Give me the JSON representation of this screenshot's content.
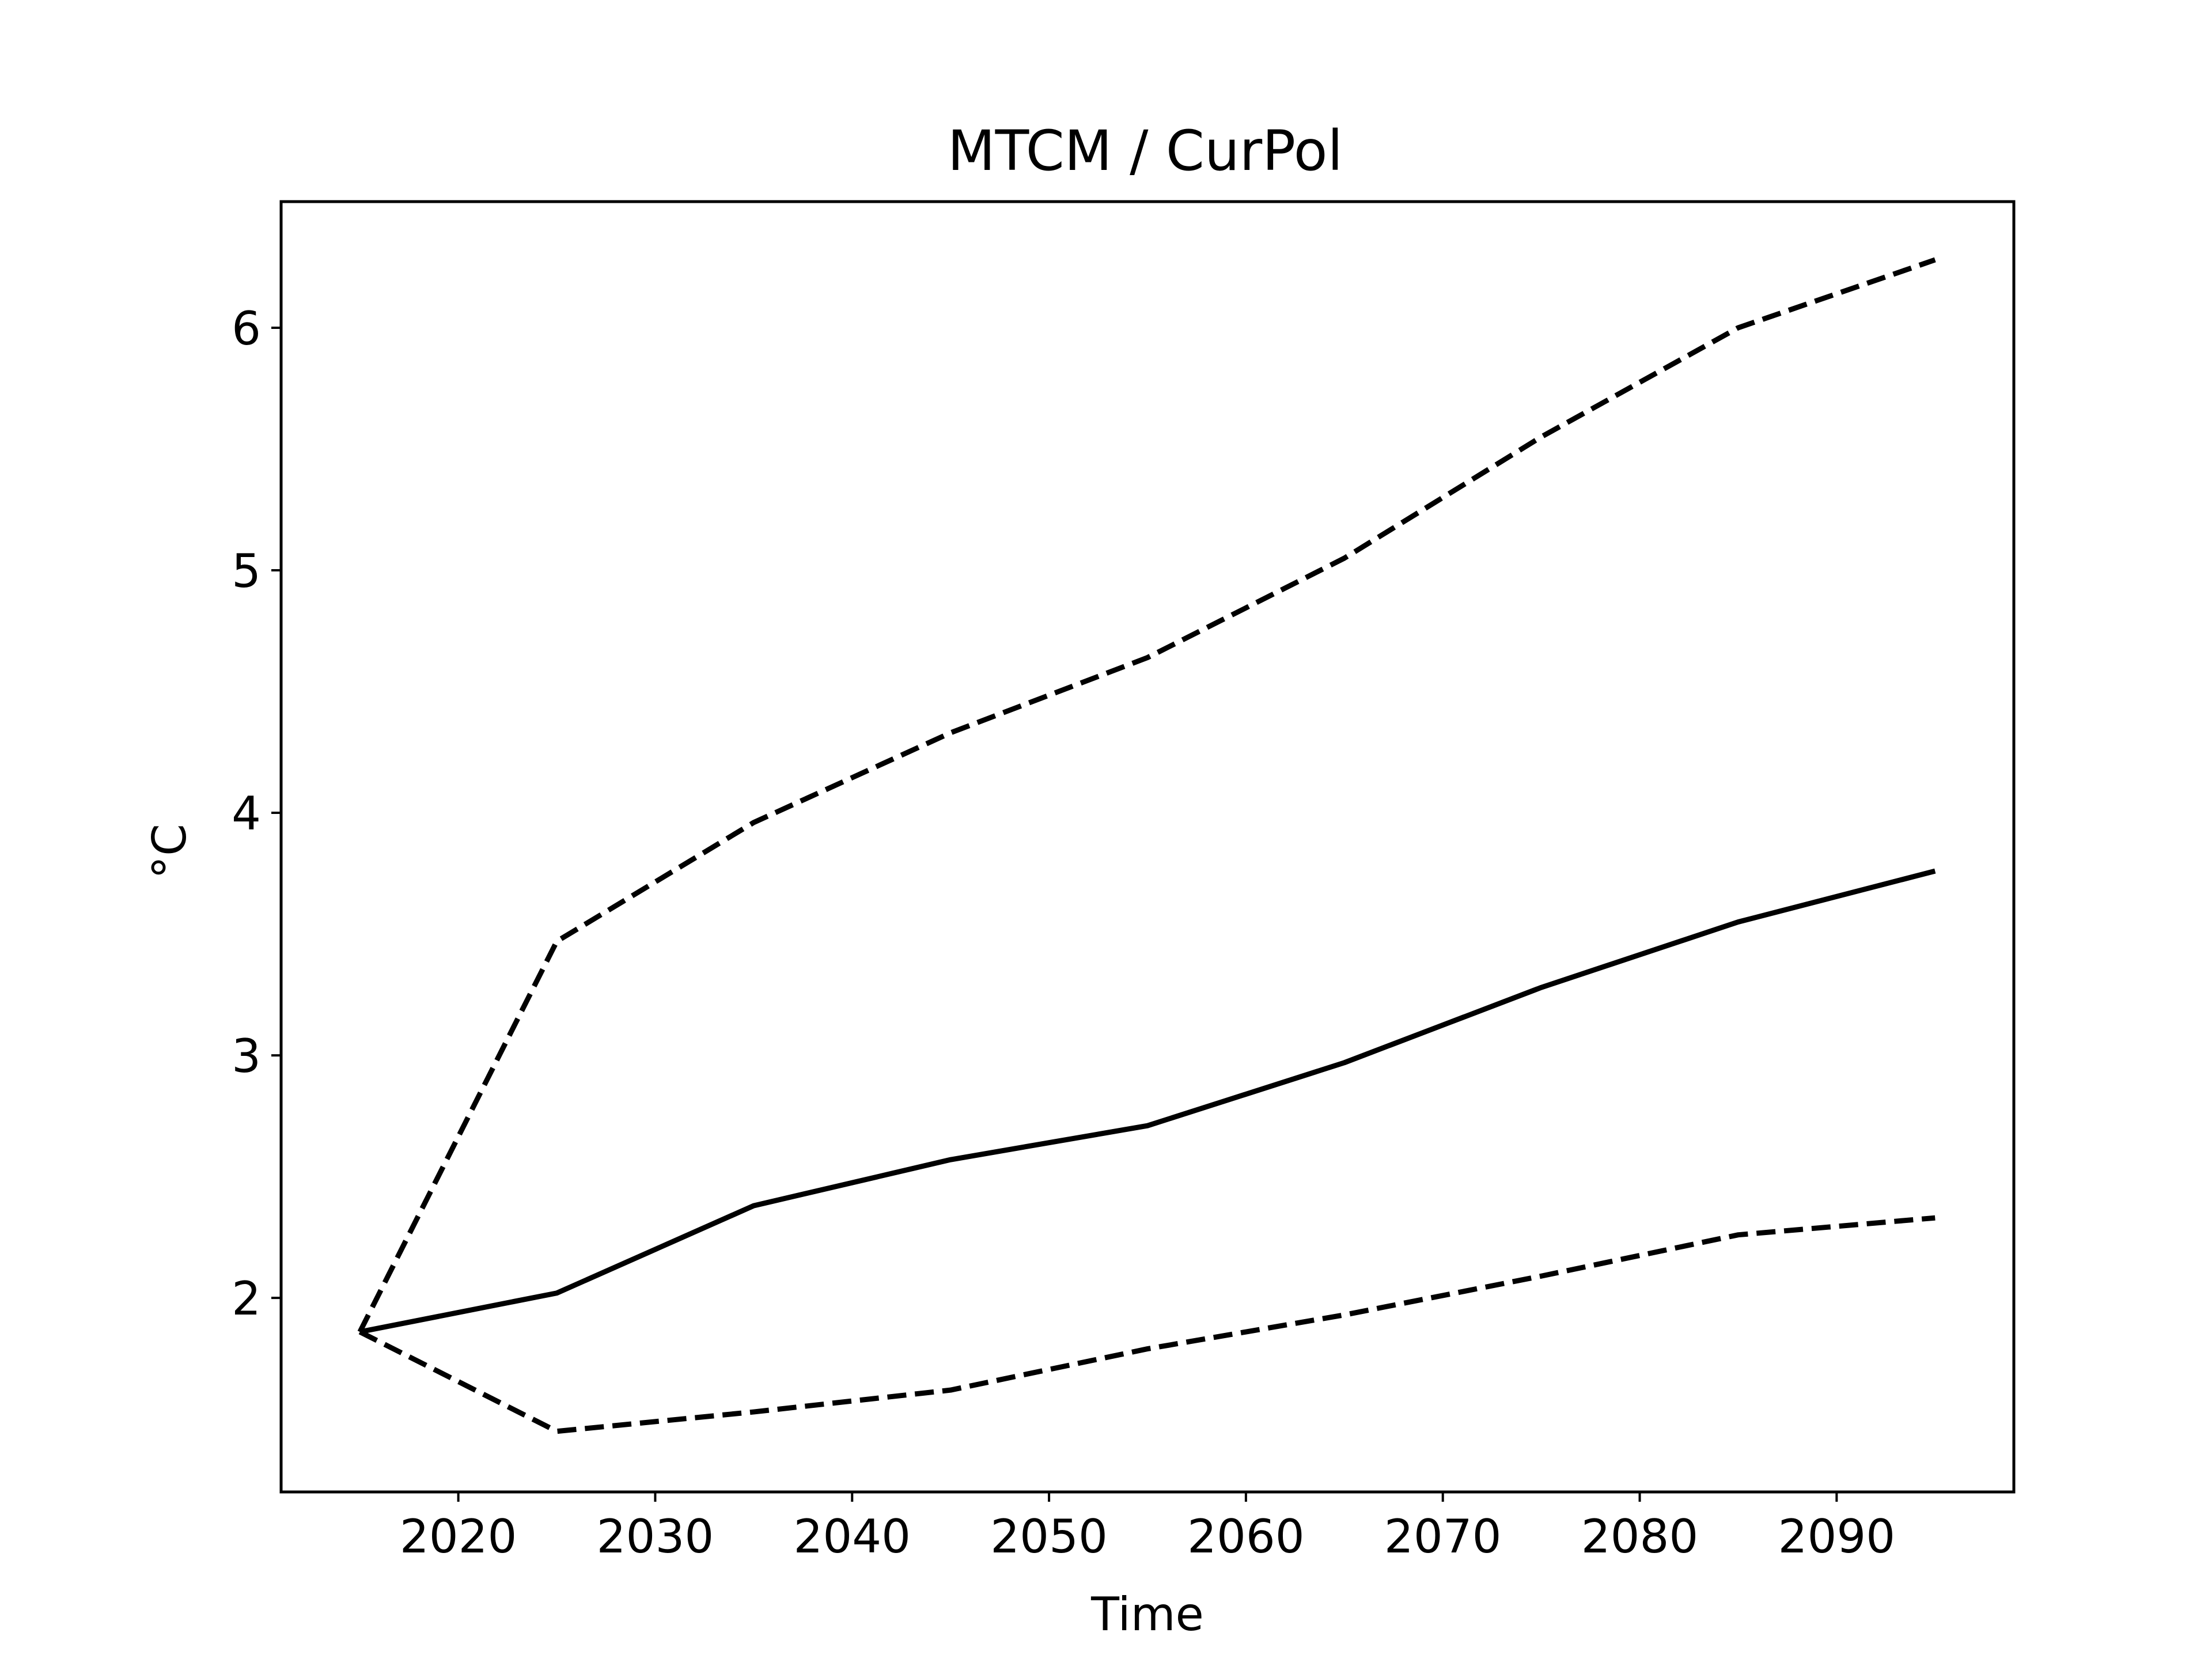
{
  "chart_data": {
    "type": "line",
    "title": "MTCM / CurPol",
    "xlabel": "Time",
    "ylabel": "°C",
    "xlim": [
      2011,
      2099
    ],
    "ylim": [
      1.2,
      6.52
    ],
    "xticks": [
      2020,
      2030,
      2040,
      2050,
      2060,
      2070,
      2080,
      2090
    ],
    "yticks": [
      2,
      3,
      4,
      5,
      6
    ],
    "grid": false,
    "legend": "none",
    "x": [
      2015,
      2025,
      2035,
      2045,
      2055,
      2065,
      2075,
      2085,
      2095
    ],
    "series": [
      {
        "style": "solid",
        "color": "#000000",
        "values": [
          1.86,
          2.02,
          2.38,
          2.57,
          2.71,
          2.97,
          3.28,
          3.55,
          3.76
        ]
      },
      {
        "style": "dashed",
        "color": "#000000",
        "values": [
          1.86,
          3.47,
          3.96,
          4.33,
          4.64,
          5.05,
          5.55,
          6.0,
          6.28
        ]
      },
      {
        "style": "dashed",
        "color": "#000000",
        "values": [
          1.86,
          1.45,
          1.53,
          1.62,
          1.79,
          1.93,
          2.09,
          2.26,
          2.33
        ]
      }
    ]
  }
}
